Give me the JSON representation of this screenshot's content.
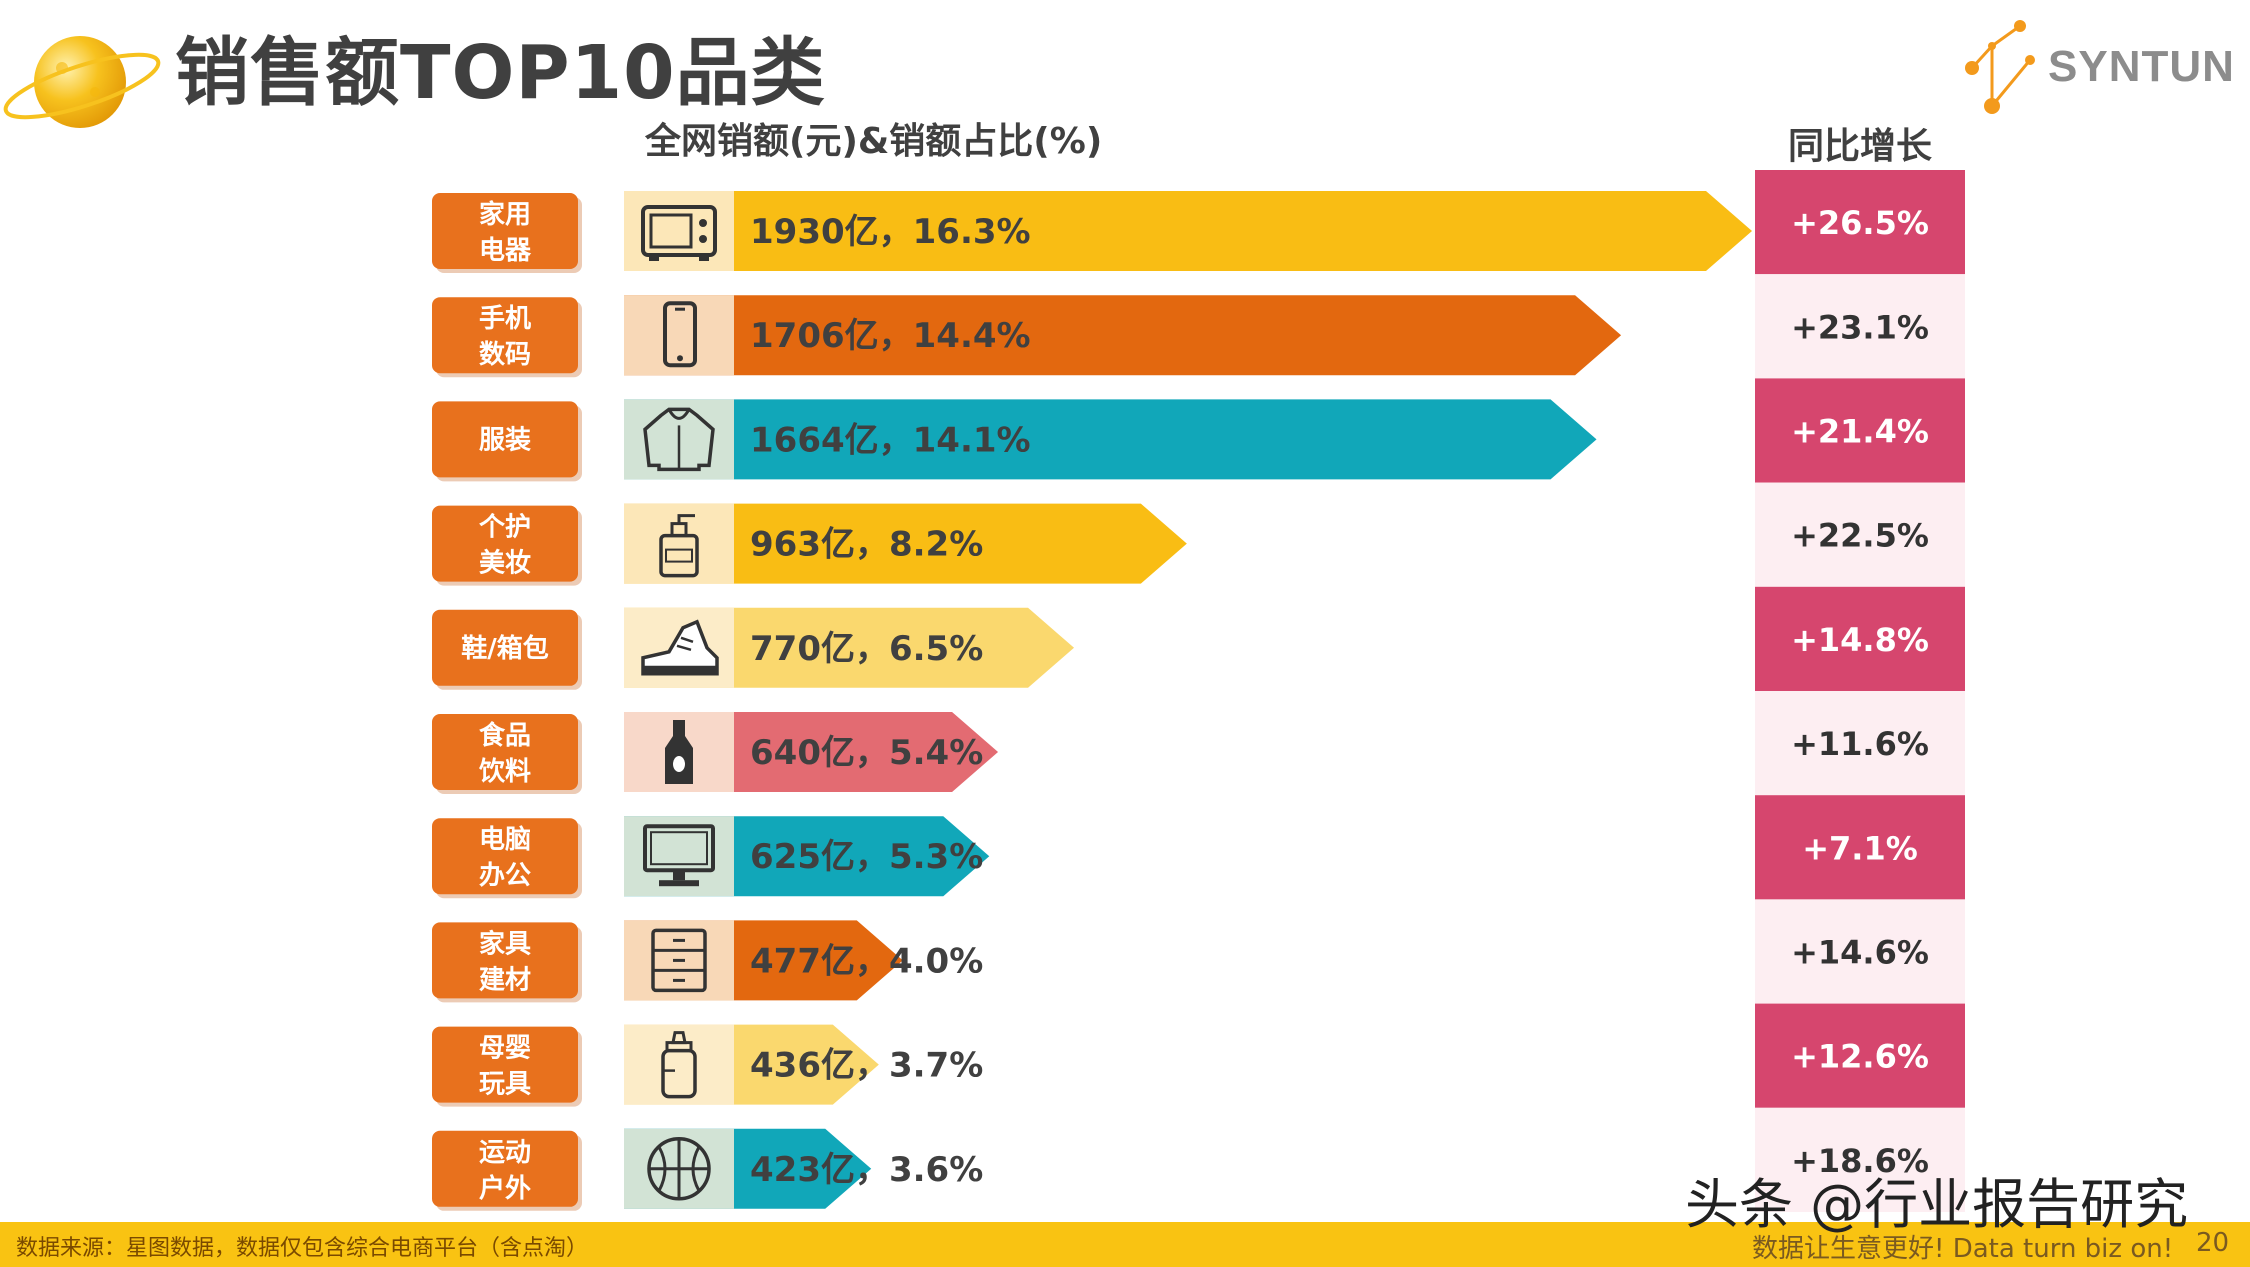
{
  "page": {
    "title": "销售额TOP10品类",
    "logo_text": "SYNTUN",
    "source_note": "数据来源：星图数据，数据仅包含综合电商平台（含点淘）",
    "slogan": "数据让生意更好! Data turn biz on!",
    "page_number": "20",
    "watermark": "头条 @行业报告研究"
  },
  "chart_data": {
    "type": "bar",
    "orientation": "horizontal",
    "ylabel": "全网销额(元)&销额占比(%)",
    "growth_header": "同比增长",
    "categories": [
      "家用\n电器",
      "手机\n数码",
      "服装",
      "个护\n美妆",
      "鞋/箱包",
      "食品\n饮料",
      "电脑\n办公",
      "家具\n建材",
      "母婴\n玩具",
      "运动\n户外"
    ],
    "values": [
      1930,
      1706,
      1664,
      963,
      770,
      640,
      625,
      477,
      436,
      423
    ],
    "value_unit": "亿",
    "shares": [
      16.3,
      14.4,
      14.1,
      8.2,
      6.5,
      5.4,
      5.3,
      4.0,
      3.7,
      3.6
    ],
    "bar_labels": [
      "1930亿，16.3%",
      "1706亿，14.4%",
      "1664亿，14.1%",
      "963亿，8.2%",
      "770亿，6.5%",
      "640亿，5.4%",
      "625亿，5.3%",
      "477亿，4.0%",
      "436亿，3.7%",
      "423亿，3.6%"
    ],
    "growth": [
      "+26.5%",
      "+23.1%",
      "+21.4%",
      "+22.5%",
      "+14.8%",
      "+11.6%",
      "+7.1%",
      "+14.6%",
      "+12.6%",
      "+18.6%"
    ],
    "icons": [
      "microwave-icon",
      "smartphone-icon",
      "hoodie-icon",
      "pump-bottle-icon",
      "sneaker-icon",
      "drink-bottle-icon",
      "monitor-icon",
      "drawer-cabinet-icon",
      "baby-bottle-icon",
      "basketball-icon"
    ],
    "bar_colors": [
      "#f9bd14",
      "#e3680f",
      "#11a7b9",
      "#f9bd14",
      "#fad86e",
      "#e36b72",
      "#11a7b9",
      "#e3680f",
      "#fad86e",
      "#11a7b9"
    ],
    "colors": {
      "category_tag": "#e8711d",
      "growth_dark": "#d6466e",
      "growth_light": "#fdeef2",
      "text_dark": "#404040"
    }
  }
}
